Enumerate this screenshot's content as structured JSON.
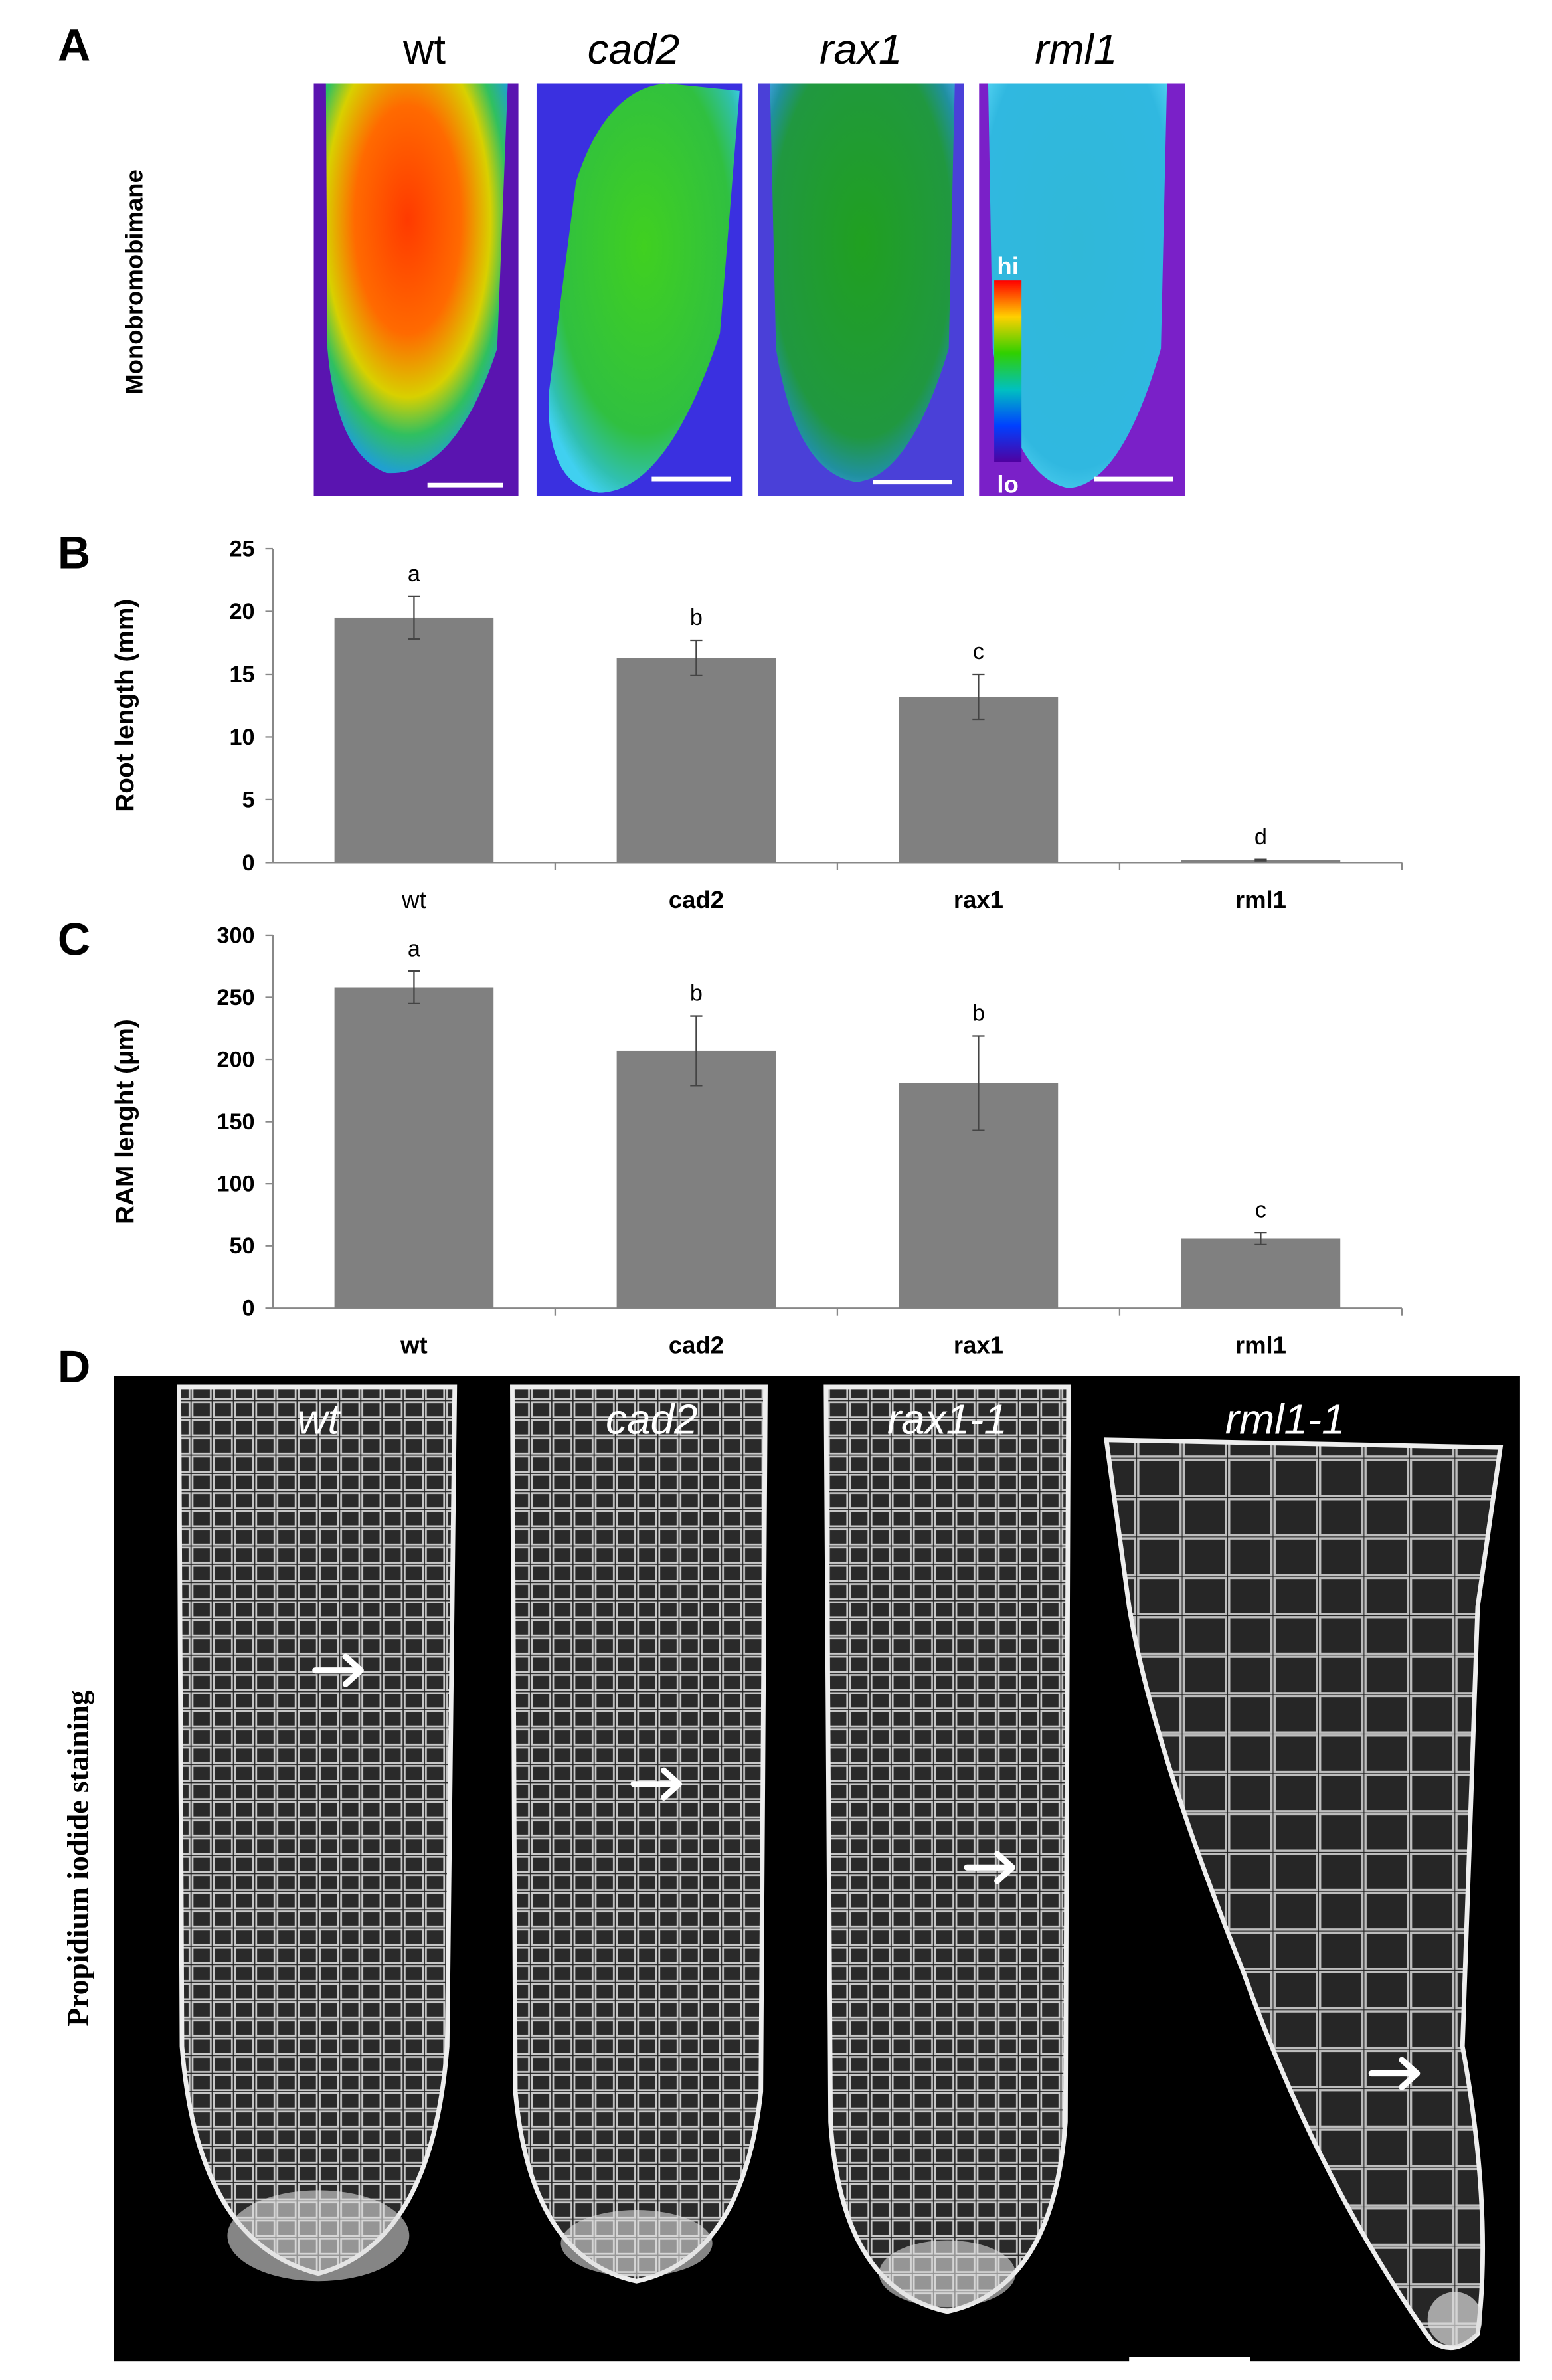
{
  "panel_a": {
    "label": "A",
    "ylabel": "Monobromobimane",
    "titles": [
      "wt",
      "cad2",
      "rax1",
      "rml1"
    ],
    "colorbar": {
      "high": "hi",
      "low": "lo"
    }
  },
  "chart_data": [
    {
      "type": "bar",
      "panel_label": "B",
      "ylabel": "Root length (mm)",
      "categories": [
        "wt",
        "cad2",
        "rax1",
        "rml1"
      ],
      "values": [
        19.5,
        16.3,
        13.2,
        0.2
      ],
      "errors": [
        1.7,
        1.4,
        1.8,
        0.05
      ],
      "annotations": [
        "a",
        "b",
        "c",
        "d"
      ],
      "color": "#808080",
      "ylim": [
        0,
        25
      ],
      "yticks": [
        0,
        5,
        10,
        15,
        20,
        25
      ],
      "grid": false
    },
    {
      "type": "bar",
      "panel_label": "C",
      "ylabel": "RAM lenght (µm)",
      "categories": [
        "wt",
        "cad2",
        "rax1",
        "rml1"
      ],
      "values": [
        258,
        207,
        181,
        56
      ],
      "errors": [
        13,
        28,
        38,
        5
      ],
      "annotations": [
        "a",
        "b",
        "b",
        "c"
      ],
      "color": "#808080",
      "ylim": [
        0,
        300
      ],
      "yticks": [
        0,
        50,
        100,
        150,
        200,
        250,
        300
      ],
      "grid": false
    }
  ],
  "panel_d": {
    "label": "D",
    "ylabel": "Propidium iodide  staining",
    "titles": [
      "wt",
      "cad2",
      "rax1-1",
      "rml1-1"
    ]
  }
}
